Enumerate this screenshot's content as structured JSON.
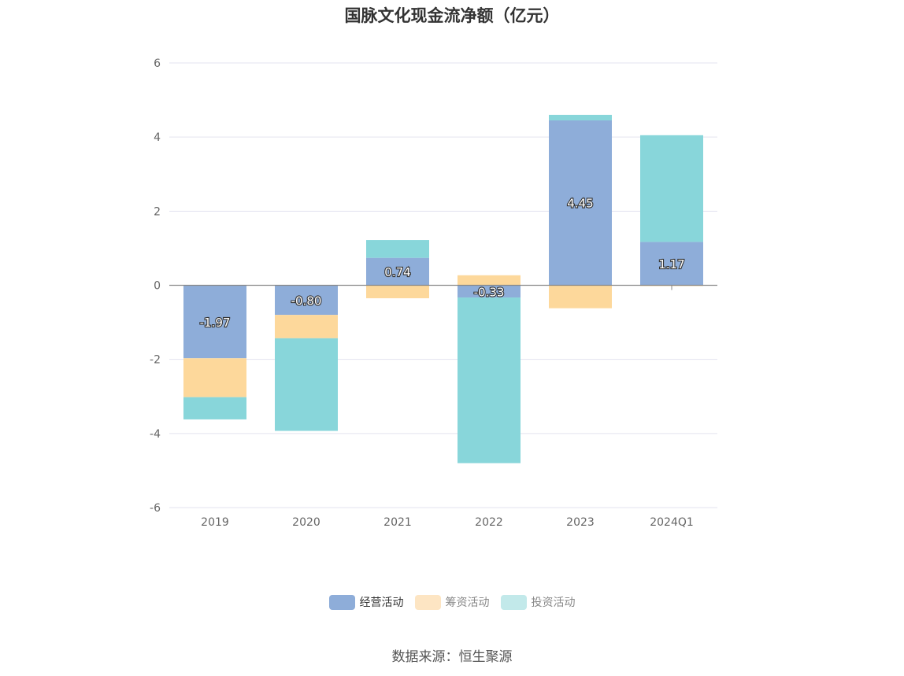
{
  "chart_data": {
    "type": "bar",
    "stacked": true,
    "title": "国脉文化现金流净额（亿元）",
    "categories": [
      "2019",
      "2020",
      "2021",
      "2022",
      "2023",
      "2024Q1"
    ],
    "series": [
      {
        "name": "经营活动",
        "color": "#8eadd9",
        "values": [
          -1.97,
          -0.8,
          0.74,
          -0.33,
          4.45,
          1.17
        ],
        "labels": [
          "-1.97",
          "-0.80",
          "0.74",
          "-0.33",
          "4.45",
          "1.17"
        ]
      },
      {
        "name": "筹资活动",
        "color": "#fdd89b",
        "values": [
          -1.05,
          -0.63,
          -0.35,
          0.27,
          -0.62,
          -0.02
        ]
      },
      {
        "name": "投资活动",
        "color": "#88d6da",
        "values": [
          -0.6,
          -2.5,
          0.48,
          -4.47,
          0.15,
          2.88
        ]
      }
    ],
    "ylim": [
      -6,
      6
    ],
    "yticks": [
      -6,
      -4,
      -2,
      0,
      2,
      4,
      6
    ],
    "xlabel": "",
    "ylabel": "",
    "legend_position": "bottom"
  },
  "legend": {
    "items": [
      {
        "label": "经营活动",
        "color": "#8eadd9",
        "active": true
      },
      {
        "label": "筹资活动",
        "color": "#fde5c3",
        "active": false
      },
      {
        "label": "投资活动",
        "color": "#c2e9ea",
        "active": false
      }
    ]
  },
  "source_text": "数据来源：恒生聚源"
}
